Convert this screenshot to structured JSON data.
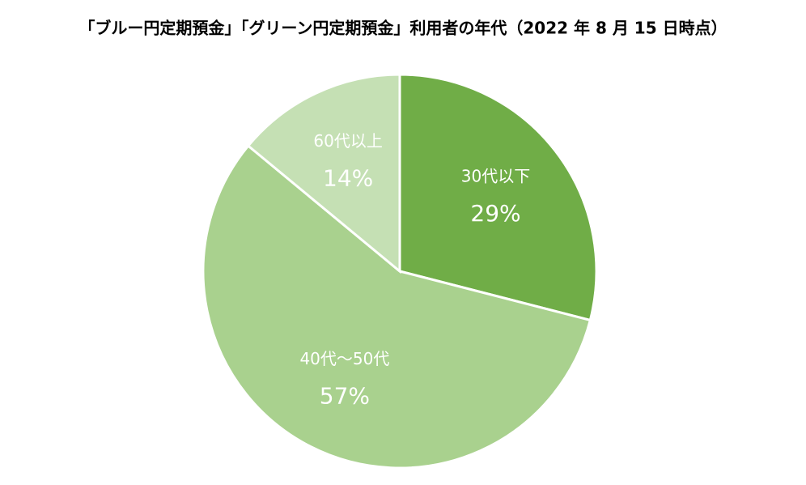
{
  "chart_data": {
    "type": "pie",
    "title": "「ブルー円定期預金」「グリーン円定期預金」利用者の年代（2022 年 8 月 15 日時点）",
    "categories": [
      "30代以下",
      "40代～50代",
      "60代以上"
    ],
    "values": [
      29,
      57,
      14
    ],
    "value_labels": [
      "29%",
      "57%",
      "14%"
    ],
    "colors": [
      "#70ad47",
      "#a9d18e",
      "#c5e0b4"
    ]
  }
}
